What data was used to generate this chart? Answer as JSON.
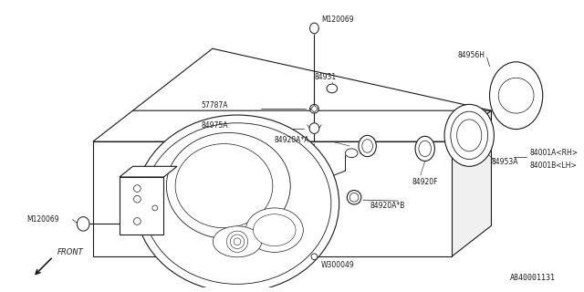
{
  "bg_color": "#ffffff",
  "line_color": "#1a1a1a",
  "fig_width": 6.4,
  "fig_height": 3.2,
  "dpi": 100,
  "diagram_code": "A840001131",
  "labels": {
    "M120069_top": "M120069",
    "84931": "84931",
    "57787A": "57787A",
    "84975A": "84975A",
    "84920A_A": "84920A*A",
    "84920F": "84920F",
    "84953A": "84953A",
    "84956H": "84956H",
    "84001A": "84001A<RH>",
    "84001B": "84001B<LH>",
    "84920A_B": "84920A*B",
    "M120069_left": "M120069",
    "W300049": "W300049",
    "FRONT": "FRONT"
  }
}
